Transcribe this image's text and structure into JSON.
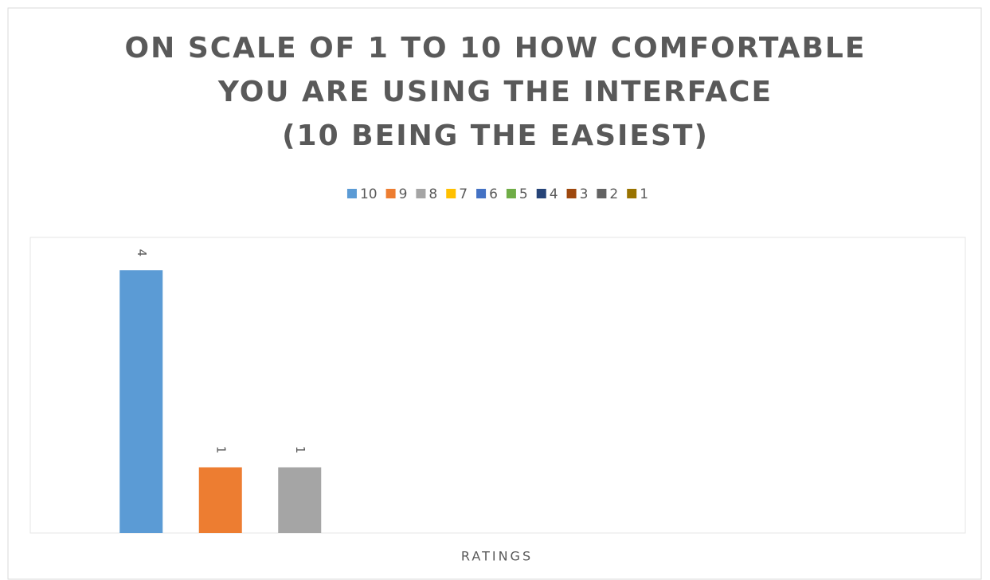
{
  "chart_data": {
    "type": "bar",
    "title": [
      "ON SCALE OF 1 TO 10 HOW COMFORTABLE",
      "YOU ARE USING THE INTERFACE",
      "(10 BEING THE EASIEST)"
    ],
    "x_label": "RATINGS",
    "ylim": [
      0,
      4.5
    ],
    "legend": "top",
    "series": [
      {
        "name": "10",
        "color": "#5b9bd5",
        "values": [
          4
        ]
      },
      {
        "name": "9",
        "color": "#ed7d31",
        "values": [
          1
        ]
      },
      {
        "name": "8",
        "color": "#a5a5a5",
        "values": [
          1
        ]
      },
      {
        "name": "7",
        "color": "#ffc000",
        "values": [
          null
        ]
      },
      {
        "name": "6",
        "color": "#4472c4",
        "values": [
          null
        ]
      },
      {
        "name": "5",
        "color": "#70ad47",
        "values": [
          null
        ]
      },
      {
        "name": "4",
        "color": "#264478",
        "values": [
          null
        ]
      },
      {
        "name": "3",
        "color": "#9e480e",
        "values": [
          null
        ]
      },
      {
        "name": "2",
        "color": "#636363",
        "values": [
          null
        ]
      },
      {
        "name": "1",
        "color": "#997300",
        "values": [
          null
        ]
      }
    ]
  }
}
